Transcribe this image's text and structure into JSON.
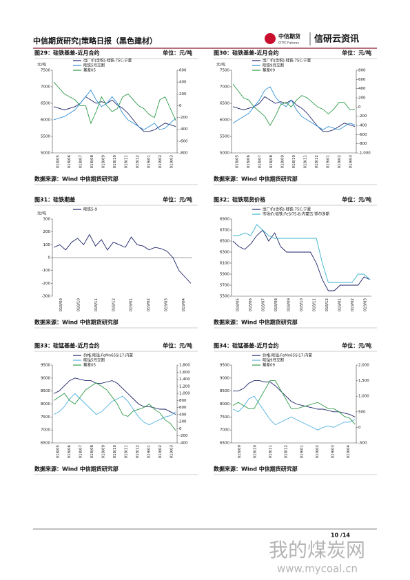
{
  "header": {
    "left": "中信期货研究|策略日报（黑色建材）",
    "logo_cn": "中信期货",
    "logo_en": "CITIC Futures",
    "brand": "信研云资讯"
  },
  "figures": [
    {
      "title": "图29：硅铁基差-近月合约",
      "unit": "单位：元/吨",
      "source": "数据来源：Wind  中信期货研究部",
      "chart_data": {
        "type": "line",
        "y_label": "元/吨",
        "x_tick_labels": [
          "018/05",
          "018/06",
          "018/07",
          "018/08",
          "018/09",
          "018/10",
          "018/11",
          "018/12",
          "019/01",
          "019/02",
          "019/03"
        ],
        "ylim": [
          5000,
          7500
        ],
        "yticks": [
          5000,
          5500,
          6000,
          6500,
          7000,
          7500
        ],
        "y2lim": [
          -800,
          600
        ],
        "y2ticks": [
          -800,
          -600,
          -400,
          -200,
          0,
          200,
          400,
          600
        ],
        "series": [
          {
            "name": "出厂价(含税):硅铁:75C:宁夏",
            "color": "#1b2266",
            "values": [
              6400,
              6350,
              6300,
              6350,
              6400,
              6500,
              6700,
              6600,
              6500,
              6550,
              6500,
              6600,
              6450,
              6350,
              6200,
              6000,
              5800,
              5650,
              5650,
              5700,
              5800,
              5900,
              5850,
              5800
            ]
          },
          {
            "name": "硅铁5月交割",
            "color": "#2f8fd6",
            "values": [
              6000,
              6050,
              6100,
              6200,
              6300,
              6500,
              6700,
              6900,
              6600,
              6400,
              6500,
              6700,
              6500,
              6200,
              6000,
              5900,
              5800,
              5700,
              5800,
              5900,
              5700,
              5750,
              5900,
              6050
            ]
          },
          {
            "name": "基差05",
            "color": "#2e9a48",
            "axis": "y2",
            "values": [
              400,
              300,
              200,
              150,
              100,
              0,
              0,
              -300,
              -100,
              150,
              0,
              -100,
              -50,
              150,
              200,
              100,
              0,
              -50,
              -150,
              -200,
              100,
              150,
              -50,
              -250
            ]
          }
        ]
      }
    },
    {
      "title": "图30：硅铁基差-近月合约",
      "unit": "单位：元/吨",
      "source": "数据来源：Wind  中信期货研究部",
      "chart_data": {
        "type": "line",
        "y_label": "元/吨",
        "x_tick_labels": [
          "018/05",
          "018/06",
          "018/07",
          "018/08",
          "018/09",
          "018/10",
          "018/11",
          "018/12",
          "019/01",
          "019/02",
          "019/03"
        ],
        "ylim": [
          5000,
          7500
        ],
        "yticks": [
          5000,
          5500,
          6000,
          6500,
          7000,
          7500
        ],
        "y2lim": [
          -1000,
          800
        ],
        "y2ticks": [
          {
            "value": -1000,
            "label": "-1,000"
          },
          -800,
          -600,
          -400,
          -200,
          0,
          200,
          400,
          600,
          800
        ],
        "series": [
          {
            "name": "出厂价(含税):硅铁:75C:宁夏",
            "color": "#1b2266",
            "values": [
              6400,
              6350,
              6300,
              6350,
              6400,
              6500,
              6700,
              6600,
              6500,
              6550,
              6500,
              6600,
              6450,
              6350,
              6200,
              6000,
              5800,
              5650,
              5650,
              5700,
              5800,
              5900,
              5850,
              5800
            ]
          },
          {
            "name": "硅铁9月交割",
            "color": "#2f8fd6",
            "values": [
              5900,
              6000,
              6100,
              6200,
              6400,
              6600,
              6900,
              7000,
              6700,
              6500,
              6400,
              6600,
              6300,
              6100,
              6000,
              5900,
              5800,
              5700,
              5800,
              5750,
              5700,
              5800,
              5900,
              5850
            ]
          },
          {
            "name": "基差09",
            "color": "#2e9a48",
            "axis": "y2",
            "values": [
              500,
              350,
              200,
              150,
              0,
              -100,
              -200,
              -400,
              -200,
              50,
              100,
              0,
              150,
              250,
              200,
              100,
              0,
              -50,
              -150,
              -50,
              100,
              100,
              -50,
              -50
            ]
          }
        ]
      }
    },
    {
      "title": "图31：硅铁期差",
      "unit": "单位：元/吨",
      "source": "数据来源：Wind  中信期货研究部",
      "chart_data": {
        "type": "line",
        "y_label": "元/吨",
        "x_tick_labels": [
          "018/09",
          "018/10",
          "018/11",
          "018/12",
          "019/01",
          "019/02",
          "019/03",
          "019/04"
        ],
        "ylim": [
          -300,
          300
        ],
        "yticks": [
          -300,
          -200,
          -100,
          0,
          100,
          200,
          300
        ],
        "series": [
          {
            "name": "硅铁5-9",
            "color": "#1b2266",
            "values": [
              80,
              100,
              60,
              120,
              150,
              100,
              180,
              90,
              140,
              60,
              120,
              100,
              80,
              160,
              100,
              90,
              60,
              80,
              70,
              50,
              0,
              -100,
              -150,
              -200
            ]
          }
        ]
      }
    },
    {
      "title": "图32：硅铁现货价格",
      "unit": "单位：元/吨",
      "source": "数据来源：Wind  中信期货研究部",
      "chart_data": {
        "type": "line",
        "x_tick_labels": [
          "018/05",
          "018/06",
          "018/07",
          "018/08",
          "018/09",
          "018/10",
          "018/11",
          "018/12",
          "019/01",
          "019/02",
          "019/03"
        ],
        "ylim": [
          5500,
          6900
        ],
        "yticks": [
          5500,
          5700,
          5900,
          6100,
          6300,
          6500,
          6700,
          6900
        ],
        "series": [
          {
            "name": "出厂价(含税):硅铁:75C:宁夏",
            "color": "#1b2266",
            "values": [
              6500,
              6400,
              6350,
              6450,
              6600,
              6700,
              6500,
              6650,
              6400,
              6300,
              6300,
              6300,
              6300,
              6300,
              6100,
              5800,
              5600,
              5600,
              5700,
              5700,
              5700,
              5700,
              5850,
              5800
            ]
          },
          {
            "name": "市场价:硅铁:FeSi75-B:内蒙古:鄂尔多斯",
            "color": "#3ab3cc",
            "values": [
              6600,
              6600,
              6650,
              6600,
              6800,
              6700,
              6600,
              6550,
              6550,
              6550,
              6550,
              6550,
              6550,
              6550,
              6550,
              6100,
              5750,
              5750,
              5750,
              5750,
              5750,
              5900,
              5900,
              5800
            ]
          }
        ]
      }
    },
    {
      "title": "图33：硅锰基差-近月合约",
      "unit": "单位：元/吨",
      "source": "数据来源：Wind  中信期货研究部",
      "chart_data": {
        "type": "line",
        "x_tick_labels": [
          "018/05",
          "018/06",
          "018/07",
          "018/08",
          "018/09",
          "018/10",
          "018/11",
          "018/12",
          "019/01",
          "019/02",
          "019/03"
        ],
        "ylim": [
          6500,
          9500
        ],
        "yticks": [
          6500,
          7000,
          7500,
          8000,
          8500,
          9000,
          9500
        ],
        "y2lim": [
          -400,
          1800
        ],
        "y2ticks": [
          -400,
          -200,
          0,
          200,
          400,
          600,
          800,
          {
            "value": 1000,
            "label": "1,000"
          },
          {
            "value": 1200,
            "label": "1,200"
          },
          {
            "value": 1400,
            "label": "1,400"
          },
          {
            "value": 1600,
            "label": "1,600"
          },
          {
            "value": 1800,
            "label": "1,800"
          }
        ],
        "series": [
          {
            "name": "价格:硅锰:FeMn65Si17:内蒙",
            "color": "#1b2266",
            "values": [
              8400,
              8500,
              8700,
              8900,
              9000,
              8950,
              8900,
              8900,
              8800,
              8800,
              8850,
              8900,
              8800,
              8600,
              8400,
              8200,
              8000,
              7900,
              7900,
              7850,
              7800,
              7800,
              7700,
              7600
            ]
          },
          {
            "name": "硅锰5月交割",
            "color": "#4fb0e0",
            "values": [
              7600,
              7700,
              7900,
              8200,
              8400,
              8200,
              8000,
              7800,
              7600,
              7700,
              7900,
              8100,
              8200,
              8300,
              8100,
              7800,
              7500,
              7300,
              7200,
              7300,
              7400,
              7500,
              7550,
              7700
            ]
          },
          {
            "name": "基差05",
            "color": "#2e9a48",
            "axis": "y2",
            "values": [
              800,
              900,
              1000,
              800,
              700,
              900,
              1100,
              1200,
              1300,
              1200,
              1100,
              900,
              700,
              400,
              350,
              500,
              550,
              600,
              700,
              550,
              450,
              250,
              150,
              -50
            ]
          }
        ]
      }
    },
    {
      "title": "图34：硅锰基差-近月合约",
      "unit": "单位：元/吨",
      "source": "数据来源：Wind  中信期货研究部",
      "chart_data": {
        "type": "line",
        "x_tick_labels": [
          "018/09",
          "018/10",
          "018/11",
          "018/12",
          "019/01",
          "019/02",
          "019/03",
          "019/04"
        ],
        "ylim": [
          6500,
          9500
        ],
        "yticks": [
          6500,
          7000,
          7500,
          8000,
          8500,
          9000,
          9500
        ],
        "y2lim": [
          -500,
          2000
        ],
        "y2ticks": [
          -500,
          0,
          500,
          {
            "value": 1000,
            "label": "1,000"
          },
          {
            "value": 1500,
            "label": "1,500"
          },
          {
            "value": 2000,
            "label": "2,000"
          }
        ],
        "series": [
          {
            "name": "价格:硅锰:FeMn65Si17:内蒙",
            "color": "#1b2266",
            "values": [
              8500,
              8500,
              8600,
              8800,
              8900,
              8900,
              8850,
              8850,
              8700,
              8500,
              8300,
              8100,
              8000,
              7950,
              7900,
              7850,
              7800,
              7800,
              7750,
              7700,
              7700,
              7650,
              7600,
              7500
            ]
          },
          {
            "name": "硅锰9月交割",
            "color": "#4fb0e0",
            "values": [
              7800,
              7700,
              7900,
              8200,
              8300,
              8000,
              7700,
              7400,
              7200,
              7300,
              7400,
              7500,
              7400,
              7300,
              7200,
              7100,
              7000,
              7100,
              7150,
              7100,
              7200,
              7300,
              7300,
              7400
            ]
          },
          {
            "name": "基差09",
            "color": "#2e9a48",
            "axis": "y2",
            "values": [
              700,
              800,
              700,
              600,
              600,
              900,
              1200,
              1500,
              1500,
              1200,
              900,
              600,
              600,
              650,
              700,
              750,
              800,
              700,
              600,
              600,
              500,
              350,
              300,
              100
            ]
          }
        ]
      }
    }
  ],
  "footer": {
    "page": "10 /14"
  },
  "watermark": {
    "cn": "我的煤炭网",
    "url": "www.mycoal.cn"
  }
}
